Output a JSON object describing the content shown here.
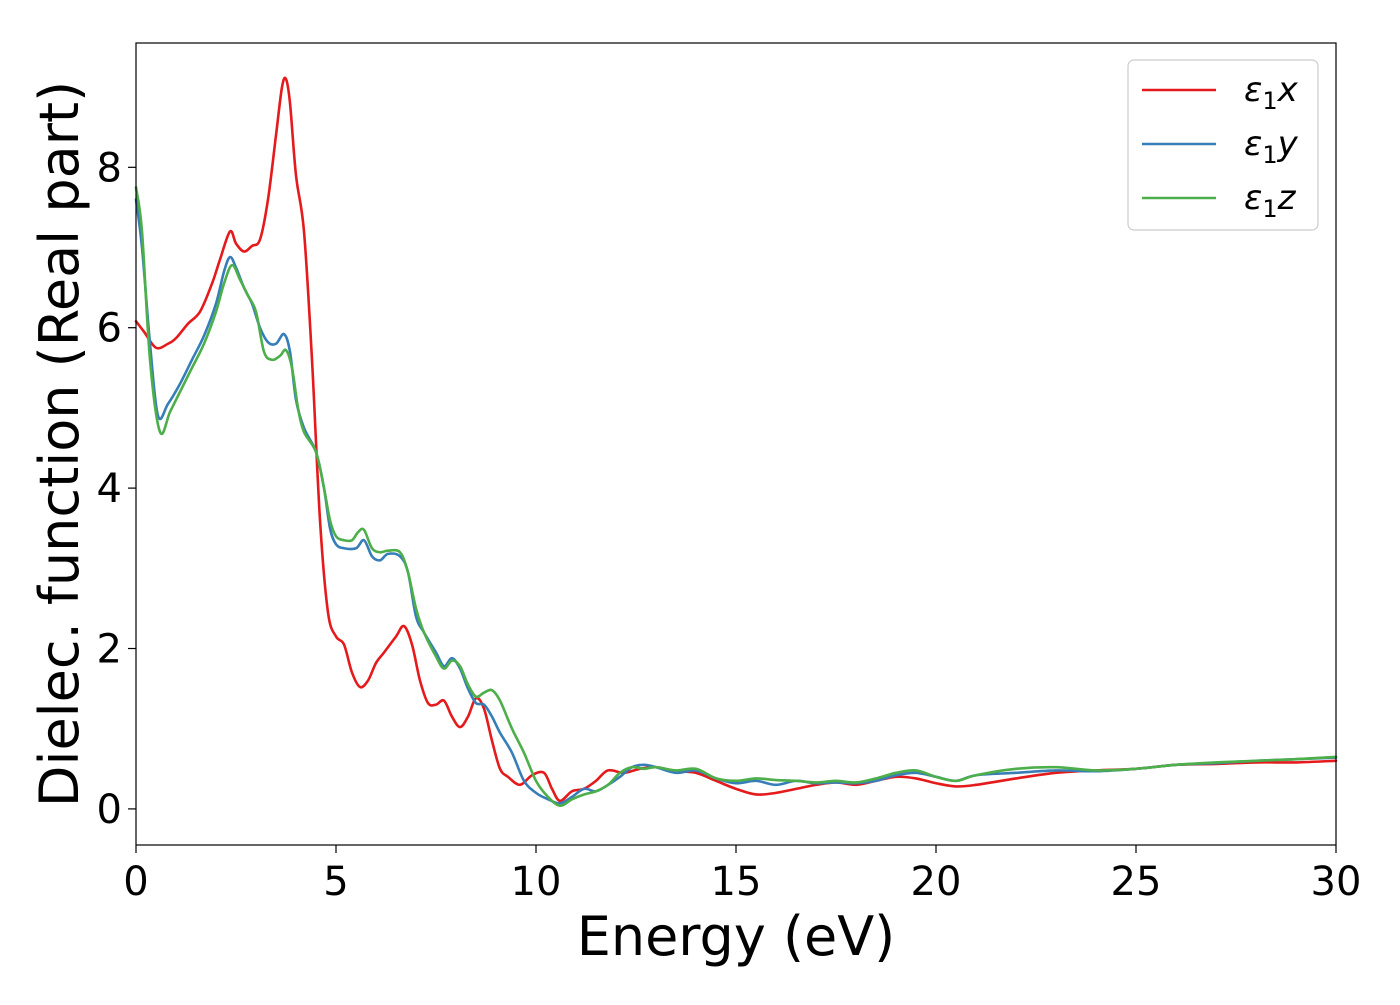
{
  "chart_data": {
    "type": "line",
    "title": "",
    "xlabel": "Energy (eV)",
    "ylabel": "Dielec. function (Real part)",
    "xlim": [
      0,
      30
    ],
    "ylim": [
      -0.45,
      9.55
    ],
    "xticks": [
      0,
      5,
      10,
      15,
      20,
      25,
      30
    ],
    "yticks": [
      0,
      2,
      4,
      6,
      8
    ],
    "grid": false,
    "legend_position": "top-right",
    "series": [
      {
        "name": "ε1x",
        "legend_base": "ε",
        "legend_sub": "1",
        "legend_var": "x",
        "color": "#e41a1c",
        "x": [
          0,
          0.2,
          0.5,
          0.8,
          1.0,
          1.3,
          1.6,
          1.9,
          2.1,
          2.35,
          2.5,
          2.7,
          2.9,
          3.1,
          3.3,
          3.5,
          3.65,
          3.75,
          3.85,
          4.0,
          4.2,
          4.4,
          4.6,
          4.8,
          5.0,
          5.2,
          5.4,
          5.6,
          5.8,
          6.0,
          6.2,
          6.5,
          6.7,
          6.9,
          7.1,
          7.3,
          7.5,
          7.7,
          7.9,
          8.1,
          8.3,
          8.5,
          8.7,
          8.9,
          9.1,
          9.3,
          9.6,
          9.9,
          10.2,
          10.4,
          10.6,
          10.9,
          11.2,
          11.5,
          11.8,
          12.2,
          12.6,
          13.0,
          13.5,
          14.0,
          14.5,
          15.0,
          15.5,
          16.0,
          16.5,
          17.0,
          17.5,
          18.0,
          18.5,
          19.0,
          19.5,
          20.0,
          20.5,
          21.0,
          22.0,
          23.0,
          24.0,
          25.0,
          26.0,
          27.0,
          28.0,
          29.0,
          30.0
        ],
        "values": [
          6.08,
          5.95,
          5.75,
          5.8,
          5.87,
          6.05,
          6.2,
          6.55,
          6.85,
          7.2,
          7.05,
          6.95,
          7.02,
          7.1,
          7.6,
          8.4,
          9.0,
          9.1,
          8.8,
          7.9,
          7.2,
          5.6,
          3.6,
          2.45,
          2.15,
          2.05,
          1.7,
          1.52,
          1.6,
          1.82,
          1.95,
          2.15,
          2.28,
          2.05,
          1.6,
          1.32,
          1.3,
          1.35,
          1.15,
          1.02,
          1.15,
          1.38,
          1.25,
          0.85,
          0.5,
          0.4,
          0.3,
          0.42,
          0.45,
          0.25,
          0.1,
          0.22,
          0.25,
          0.35,
          0.48,
          0.45,
          0.5,
          0.52,
          0.47,
          0.45,
          0.35,
          0.25,
          0.18,
          0.2,
          0.25,
          0.3,
          0.33,
          0.3,
          0.35,
          0.4,
          0.38,
          0.32,
          0.28,
          0.3,
          0.38,
          0.45,
          0.48,
          0.5,
          0.55,
          0.56,
          0.58,
          0.58,
          0.6
        ]
      },
      {
        "name": "ε1y",
        "legend_base": "ε",
        "legend_sub": "1",
        "legend_var": "y",
        "color": "#377eb8",
        "x": [
          0,
          0.15,
          0.35,
          0.55,
          0.8,
          1.1,
          1.4,
          1.7,
          2.0,
          2.2,
          2.35,
          2.5,
          2.7,
          2.9,
          3.1,
          3.3,
          3.5,
          3.7,
          3.85,
          4.0,
          4.2,
          4.5,
          4.7,
          4.85,
          5.0,
          5.2,
          5.5,
          5.7,
          5.9,
          6.1,
          6.3,
          6.6,
          6.8,
          7.0,
          7.2,
          7.5,
          7.7,
          7.9,
          8.1,
          8.3,
          8.5,
          8.7,
          8.9,
          9.1,
          9.4,
          9.7,
          10.0,
          10.3,
          10.6,
          10.9,
          11.2,
          11.5,
          11.8,
          12.1,
          12.4,
          12.7,
          13.0,
          13.5,
          14.0,
          14.5,
          15.0,
          15.5,
          16.0,
          16.5,
          17.0,
          17.5,
          18.0,
          18.5,
          19.0,
          19.5,
          20.0,
          20.5,
          21.0,
          22.0,
          23.0,
          24.0,
          25.0,
          26.0,
          27.0,
          28.0,
          29.0,
          30.0
        ],
        "values": [
          7.6,
          7.0,
          5.8,
          4.9,
          5.05,
          5.3,
          5.6,
          5.9,
          6.3,
          6.7,
          6.88,
          6.75,
          6.5,
          6.3,
          6.0,
          5.82,
          5.8,
          5.92,
          5.7,
          5.1,
          4.75,
          4.45,
          4.0,
          3.5,
          3.3,
          3.25,
          3.25,
          3.35,
          3.15,
          3.1,
          3.18,
          3.15,
          2.95,
          2.4,
          2.2,
          1.95,
          1.78,
          1.88,
          1.75,
          1.5,
          1.32,
          1.3,
          1.15,
          0.95,
          0.7,
          0.35,
          0.2,
          0.12,
          0.07,
          0.15,
          0.25,
          0.22,
          0.3,
          0.4,
          0.52,
          0.55,
          0.52,
          0.45,
          0.48,
          0.38,
          0.32,
          0.35,
          0.3,
          0.35,
          0.32,
          0.33,
          0.32,
          0.35,
          0.42,
          0.45,
          0.4,
          0.35,
          0.42,
          0.45,
          0.48,
          0.47,
          0.5,
          0.55,
          0.57,
          0.6,
          0.62,
          0.64
        ]
      },
      {
        "name": "ε1z",
        "legend_base": "ε",
        "legend_sub": "1",
        "legend_var": "z",
        "color": "#4daf4a",
        "x": [
          0,
          0.15,
          0.35,
          0.6,
          0.85,
          1.1,
          1.4,
          1.7,
          2.0,
          2.2,
          2.4,
          2.6,
          2.8,
          3.0,
          3.2,
          3.4,
          3.6,
          3.75,
          3.9,
          4.05,
          4.2,
          4.5,
          4.7,
          4.85,
          5.0,
          5.2,
          5.4,
          5.55,
          5.7,
          5.9,
          6.1,
          6.3,
          6.6,
          6.8,
          7.0,
          7.2,
          7.5,
          7.7,
          7.9,
          8.1,
          8.3,
          8.5,
          8.7,
          8.9,
          9.1,
          9.4,
          9.7,
          10.0,
          10.3,
          10.6,
          10.9,
          11.2,
          11.5,
          11.8,
          12.1,
          12.4,
          12.7,
          13.0,
          13.5,
          14.0,
          14.5,
          15.0,
          15.5,
          16.0,
          16.5,
          17.0,
          17.5,
          18.0,
          18.5,
          19.0,
          19.5,
          20.0,
          20.5,
          21.0,
          22.0,
          23.0,
          24.0,
          25.0,
          26.0,
          27.0,
          28.0,
          29.0,
          30.0
        ],
        "values": [
          7.75,
          7.2,
          5.6,
          4.7,
          4.95,
          5.2,
          5.5,
          5.8,
          6.2,
          6.55,
          6.78,
          6.6,
          6.4,
          6.2,
          5.7,
          5.6,
          5.65,
          5.72,
          5.5,
          5.0,
          4.7,
          4.45,
          4.0,
          3.6,
          3.4,
          3.35,
          3.35,
          3.45,
          3.48,
          3.25,
          3.2,
          3.22,
          3.2,
          2.95,
          2.5,
          2.2,
          1.9,
          1.75,
          1.85,
          1.78,
          1.55,
          1.4,
          1.45,
          1.48,
          1.35,
          1.0,
          0.7,
          0.35,
          0.15,
          0.04,
          0.12,
          0.18,
          0.22,
          0.3,
          0.45,
          0.52,
          0.5,
          0.52,
          0.48,
          0.5,
          0.38,
          0.35,
          0.38,
          0.36,
          0.35,
          0.33,
          0.35,
          0.33,
          0.38,
          0.45,
          0.48,
          0.4,
          0.35,
          0.42,
          0.5,
          0.52,
          0.48,
          0.5,
          0.55,
          0.58,
          0.6,
          0.62,
          0.65
        ]
      }
    ]
  }
}
